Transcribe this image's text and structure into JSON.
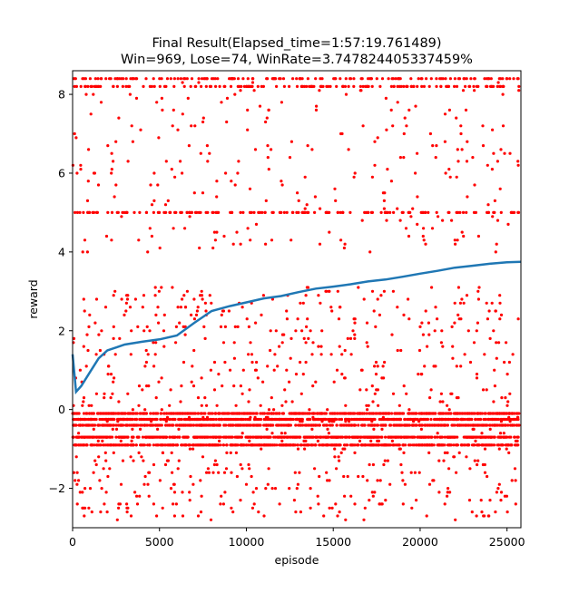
{
  "chart_data": {
    "type": "scatter",
    "title_lines": [
      "Final Result(Elapsed_time=1:57:19.761489)",
      "Win=969, Lose=74, WinRate=3.747824405337459%"
    ],
    "xlabel": "episode",
    "ylabel": "reward",
    "xlim": [
      0,
      25800
    ],
    "ylim": [
      -3.0,
      8.6
    ],
    "xticks": [
      0,
      5000,
      10000,
      15000,
      20000,
      25000
    ],
    "yticks": [
      -2,
      0,
      2,
      4,
      6,
      8
    ],
    "xtick_labels": [
      "0",
      "5000",
      "10000",
      "15000",
      "20000",
      "25000"
    ],
    "ytick_labels": [
      "−2",
      "0",
      "2",
      "4",
      "6",
      "8"
    ],
    "grid": false,
    "legend": false,
    "colors": {
      "scatter": "#ff0000",
      "line": "#1f77b4"
    },
    "scatter_bands": [
      {
        "y": -0.9,
        "density": "dense"
      },
      {
        "y": -0.7,
        "density": "dense"
      },
      {
        "y": -0.4,
        "density": "dense"
      },
      {
        "y": -0.25,
        "density": "dense"
      },
      {
        "y": -0.1,
        "density": "dense"
      },
      {
        "y_range": [
          -1.0,
          3.1
        ],
        "density": "dense"
      },
      {
        "y_range": [
          -2.8,
          -1.0
        ],
        "density": "sparse"
      },
      {
        "y_range": [
          4.0,
          8.4
        ],
        "density": "sparse"
      },
      {
        "y": 8.4,
        "density": "medium"
      },
      {
        "y": 8.2,
        "density": "medium"
      },
      {
        "y": 5.0,
        "density": "medium"
      }
    ],
    "series": [
      {
        "kind": "line",
        "x": [
          0,
          200,
          500,
          1000,
          1500,
          2000,
          3000,
          4000,
          5000,
          6000,
          7000,
          8000,
          9000,
          10000,
          11000,
          12000,
          13000,
          14000,
          15000,
          16000,
          17000,
          18000,
          19000,
          20000,
          21000,
          22000,
          23000,
          24000,
          25000,
          25800
        ],
        "y": [
          1.4,
          0.45,
          0.6,
          0.95,
          1.3,
          1.5,
          1.65,
          1.72,
          1.78,
          1.88,
          2.2,
          2.5,
          2.62,
          2.72,
          2.82,
          2.88,
          2.98,
          3.07,
          3.12,
          3.18,
          3.25,
          3.3,
          3.37,
          3.45,
          3.52,
          3.6,
          3.65,
          3.7,
          3.74,
          3.75
        ]
      }
    ]
  }
}
